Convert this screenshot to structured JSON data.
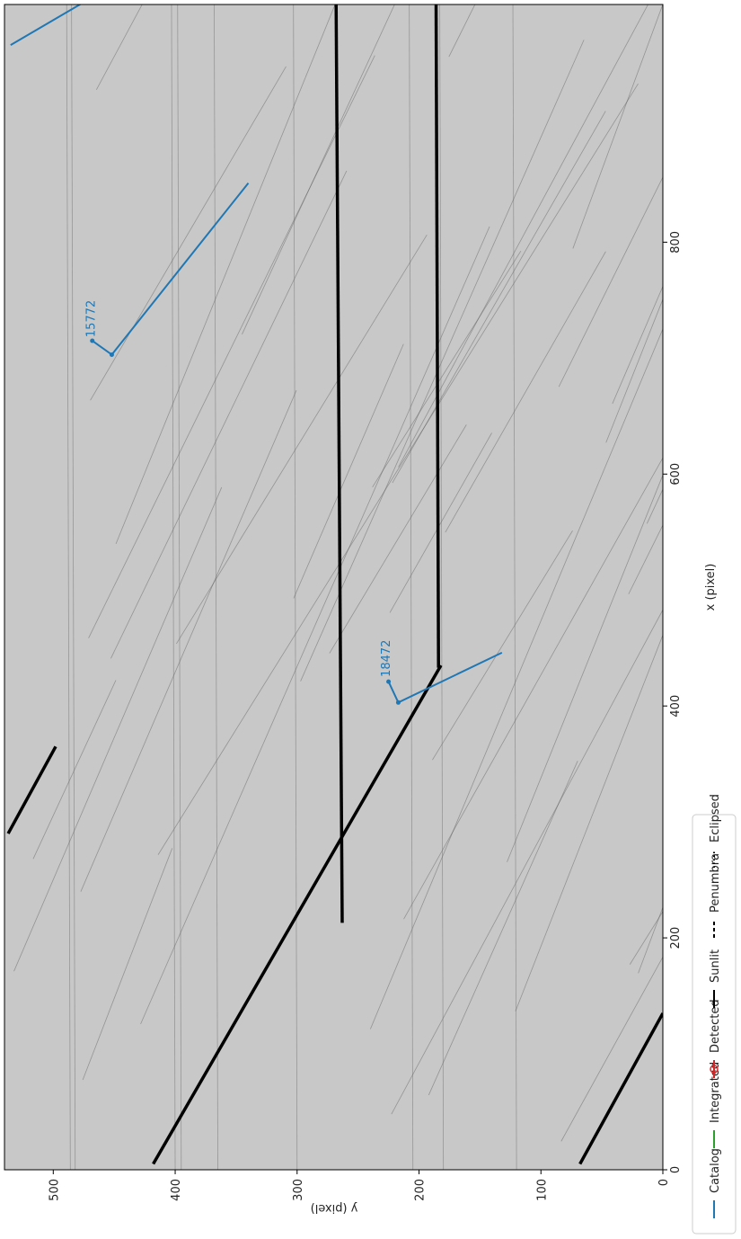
{
  "chart_data": {
    "type": "line",
    "orientation": "rotated-90-clockwise",
    "title": "",
    "xlabel": "x (pixel)",
    "ylabel": "y (pixel)",
    "xlim": [
      0,
      1005
    ],
    "ylim": [
      0,
      540
    ],
    "xticks": [
      0,
      200,
      400,
      600,
      800
    ],
    "yticks": [
      0,
      100,
      200,
      300,
      400,
      500
    ],
    "background_image": "grayscale star-field frame with satellite streaks",
    "colors": {
      "catalog": "#1f77b4",
      "integrated": "#2ca02c",
      "detected": "#d62728",
      "sunlit": "#000000",
      "image_bg": "#c8c8c8"
    },
    "catalog_tracks": [
      {
        "label": "15772",
        "label_at": {
          "x": 718,
          "y": 466
        },
        "points": [
          {
            "x": 715,
            "y": 468
          },
          {
            "x": 703,
            "y": 452
          },
          {
            "x": 851,
            "y": 340
          }
        ]
      },
      {
        "label": "18472",
        "label_at": {
          "x": 425,
          "y": 224
        },
        "points": [
          {
            "x": 421,
            "y": 225
          },
          {
            "x": 403,
            "y": 217
          },
          {
            "x": 446,
            "y": 132
          }
        ]
      },
      {
        "label": "",
        "points": [
          {
            "x": 970,
            "y": 535
          },
          {
            "x": 1010,
            "y": 470
          }
        ]
      }
    ],
    "sunlit_streaks": [
      {
        "name": "vertical-track",
        "points": [
          {
            "x": 213,
            "y": 263
          },
          {
            "x": 1005,
            "y": 268
          }
        ]
      },
      {
        "name": "long-diagonal",
        "points": [
          {
            "x": 5,
            "y": 418
          },
          {
            "x": 435,
            "y": 182
          }
        ]
      },
      {
        "name": "vertical-short",
        "points": [
          {
            "x": 433,
            "y": 184
          },
          {
            "x": 1005,
            "y": 186
          }
        ]
      },
      {
        "name": "upper-left",
        "points": [
          {
            "x": 290,
            "y": 537
          },
          {
            "x": 365,
            "y": 498
          }
        ]
      },
      {
        "name": "lower-right",
        "points": [
          {
            "x": 5,
            "y": 68
          },
          {
            "x": 135,
            "y": 0
          }
        ]
      }
    ],
    "legend": {
      "placement": "bottom",
      "entries": [
        {
          "label": "Catalog",
          "style": "solid-blue"
        },
        {
          "label": "Integrated",
          "style": "solid-green"
        },
        {
          "label": "Detected",
          "style": "red-circle"
        },
        {
          "label": "Sunlit",
          "style": "solid-black"
        },
        {
          "label": "Penumbra",
          "style": "dashed-black"
        },
        {
          "label": "Eclipsed",
          "style": "dotted-black"
        }
      ]
    }
  }
}
